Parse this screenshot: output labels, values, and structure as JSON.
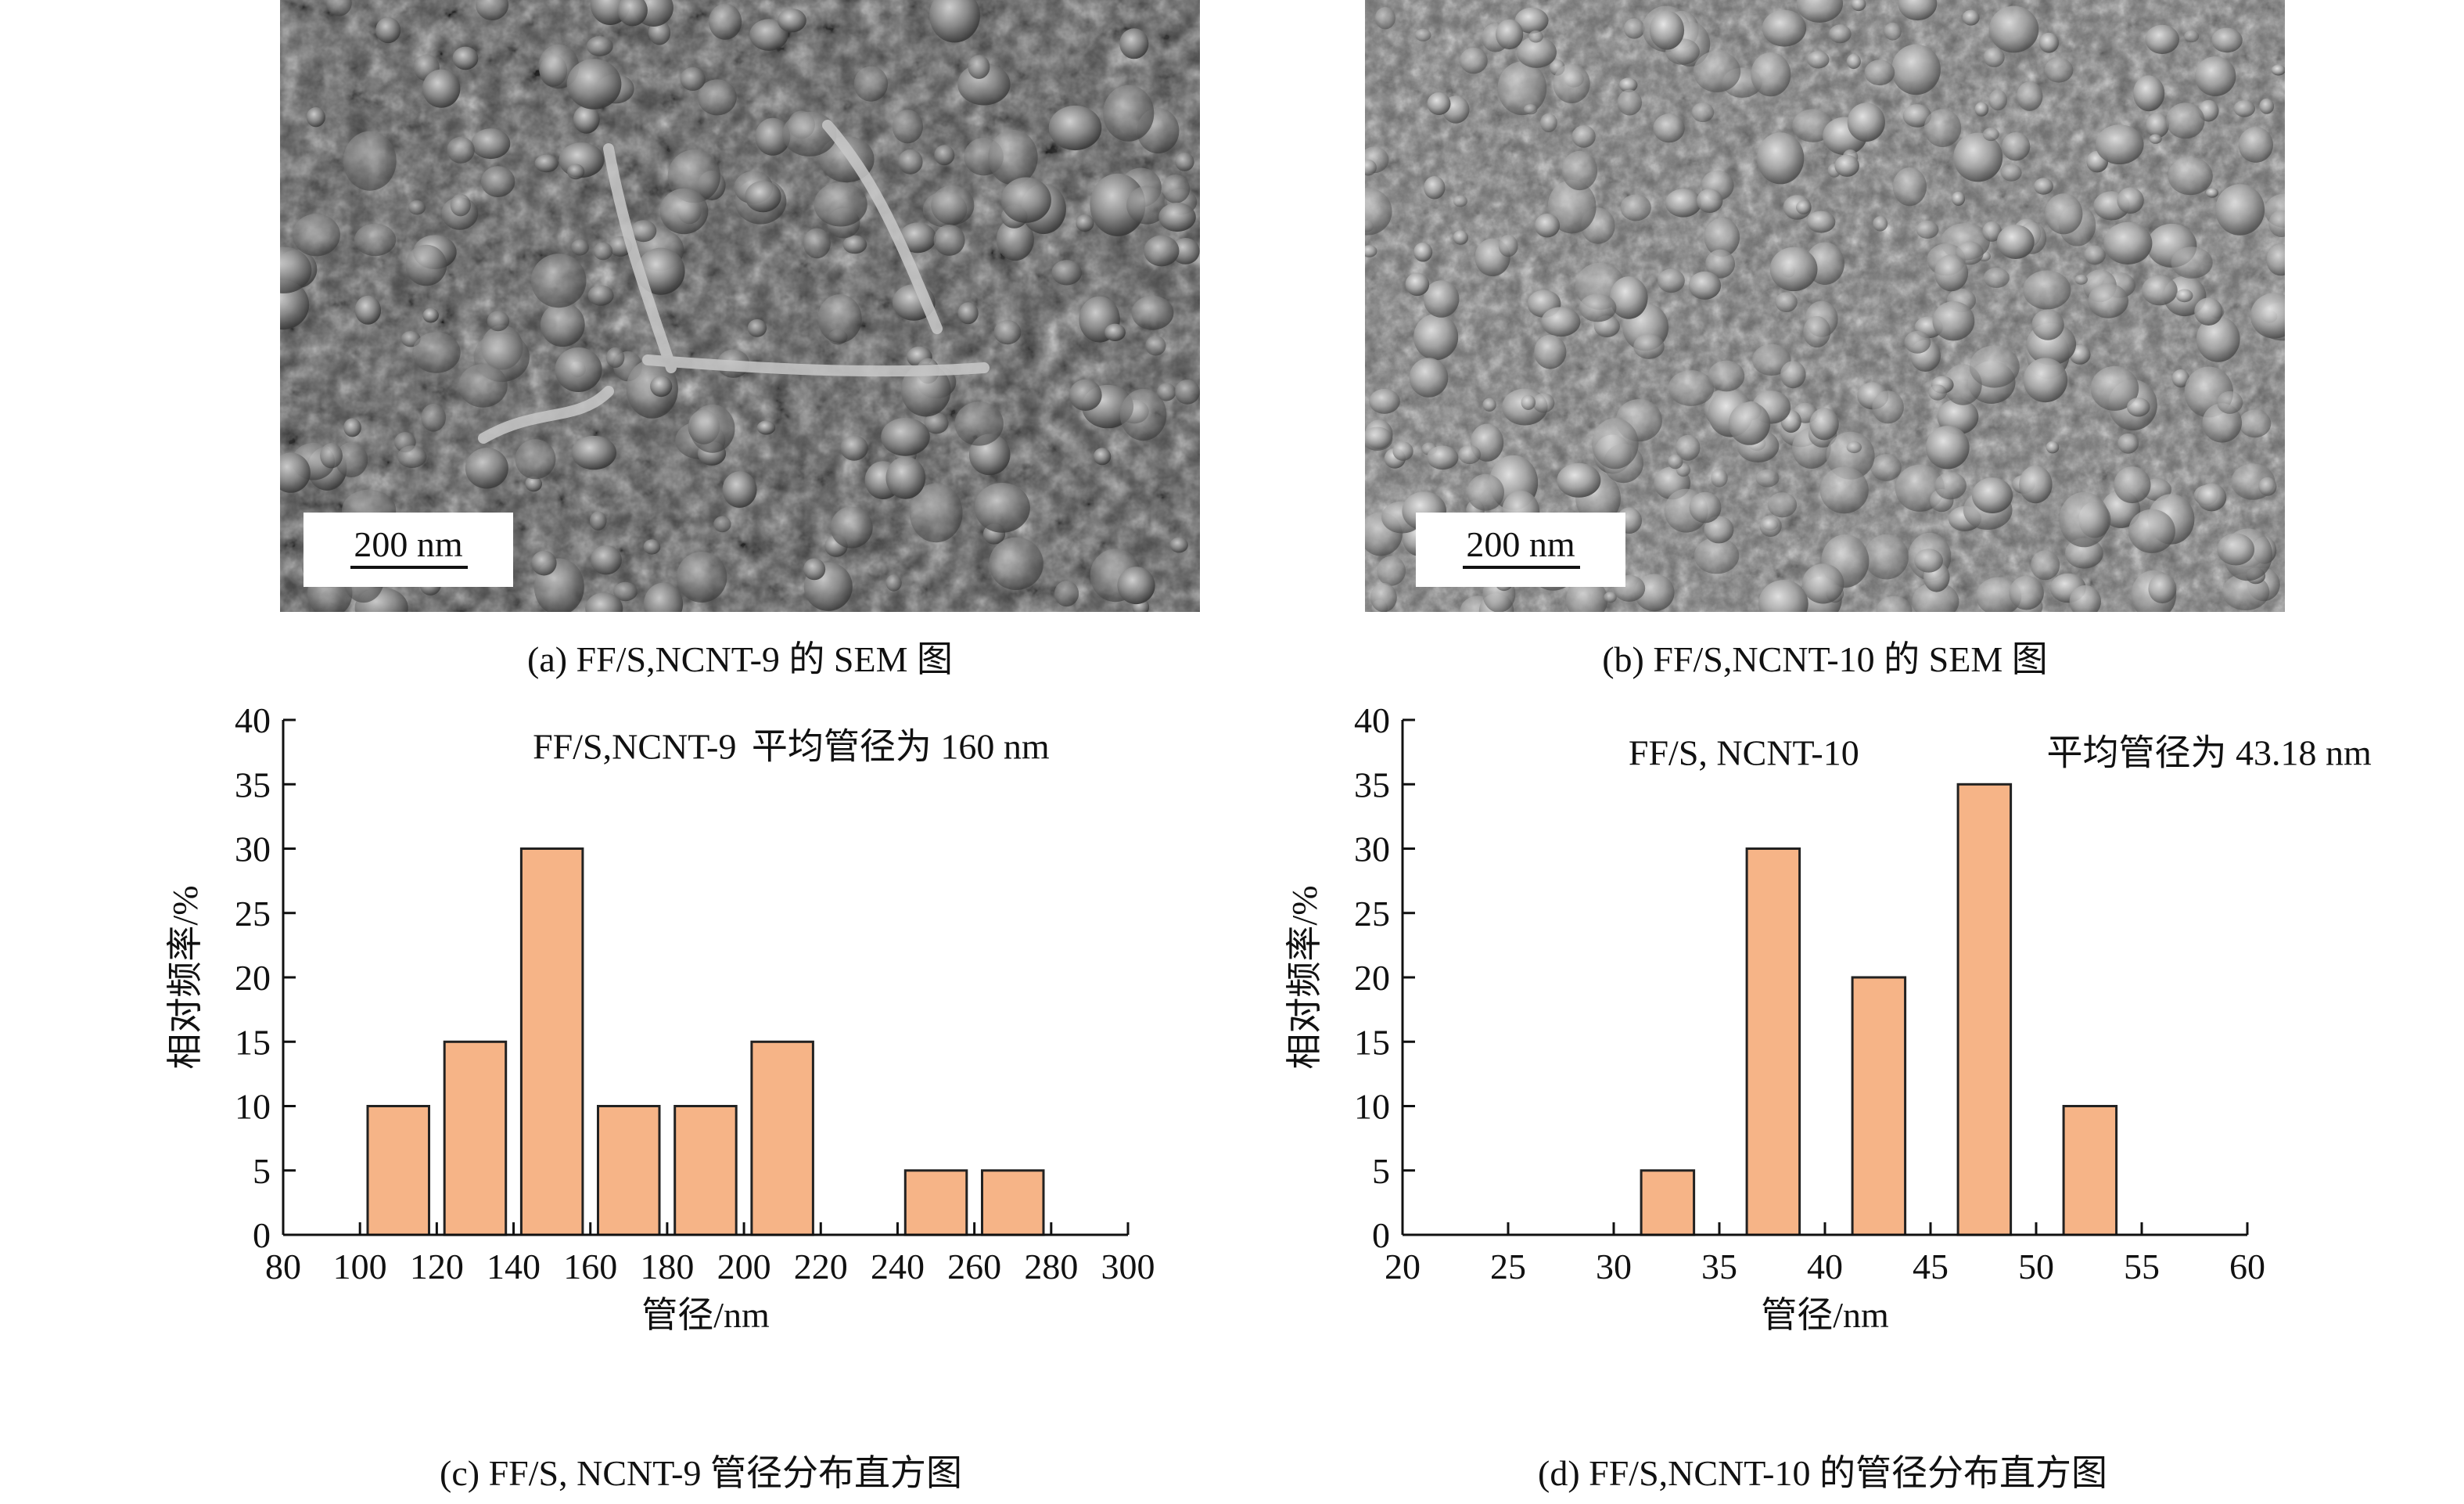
{
  "panels": {
    "a": {
      "scale_label": "200 nm",
      "caption": "(a) FF/S,NCNT-9 的 SEM 图"
    },
    "b": {
      "scale_label": "200 nm",
      "caption": "(b) FF/S,NCNT-10 的 SEM 图"
    },
    "c": {
      "caption": "(c) FF/S, NCNT-9 管径分布直方图"
    },
    "d": {
      "caption": "(d) FF/S,NCNT-10 的管径分布直方图"
    }
  },
  "colors": {
    "bar_fill": "#F6B487",
    "bar_stroke": "#222222",
    "axis": "#111111"
  },
  "chart_data": [
    {
      "id": "c",
      "type": "bar",
      "title": "",
      "xlabel": "管径/nm",
      "ylabel": "相对频率/%",
      "xlim": [
        80,
        300
      ],
      "ylim": [
        0,
        40
      ],
      "xticks": [
        80,
        100,
        120,
        140,
        160,
        180,
        200,
        220,
        240,
        260,
        280,
        300
      ],
      "yticks": [
        0,
        5,
        10,
        15,
        20,
        25,
        30,
        35,
        40
      ],
      "bins": [
        {
          "from": 102,
          "to": 118,
          "value": 10
        },
        {
          "from": 122,
          "to": 138,
          "value": 15
        },
        {
          "from": 142,
          "to": 158,
          "value": 30
        },
        {
          "from": 162,
          "to": 178,
          "value": 10
        },
        {
          "from": 182,
          "to": 198,
          "value": 10
        },
        {
          "from": 202,
          "to": 218,
          "value": 15
        },
        {
          "from": 242,
          "to": 258,
          "value": 5
        },
        {
          "from": 262,
          "to": 278,
          "value": 5
        }
      ],
      "annotations": [
        {
          "text": "FF/S,NCNT-9",
          "x": 145,
          "y": 37
        },
        {
          "text": "平均管径为 160 nm",
          "x": 202,
          "y": 37
        }
      ],
      "grid": false
    },
    {
      "id": "d",
      "type": "bar",
      "title": "",
      "xlabel": "管径/nm",
      "ylabel": "相对频率/%",
      "xlim": [
        20,
        60
      ],
      "ylim": [
        0,
        40
      ],
      "xticks": [
        20,
        25,
        30,
        35,
        40,
        45,
        50,
        55,
        60
      ],
      "yticks": [
        0,
        5,
        10,
        15,
        20,
        25,
        30,
        35,
        40
      ],
      "bins": [
        {
          "from": 31.3,
          "to": 33.8,
          "value": 5
        },
        {
          "from": 36.3,
          "to": 38.8,
          "value": 30
        },
        {
          "from": 41.3,
          "to": 43.8,
          "value": 20
        },
        {
          "from": 46.3,
          "to": 48.8,
          "value": 35
        },
        {
          "from": 51.3,
          "to": 53.8,
          "value": 10
        }
      ],
      "annotations": [
        {
          "text": "FF/S, NCNT-10",
          "x": 30.7,
          "y": 36.5
        },
        {
          "text": "平均管径为 43.18 nm",
          "x": 50.5,
          "y": 36.5
        }
      ],
      "grid": false
    }
  ]
}
